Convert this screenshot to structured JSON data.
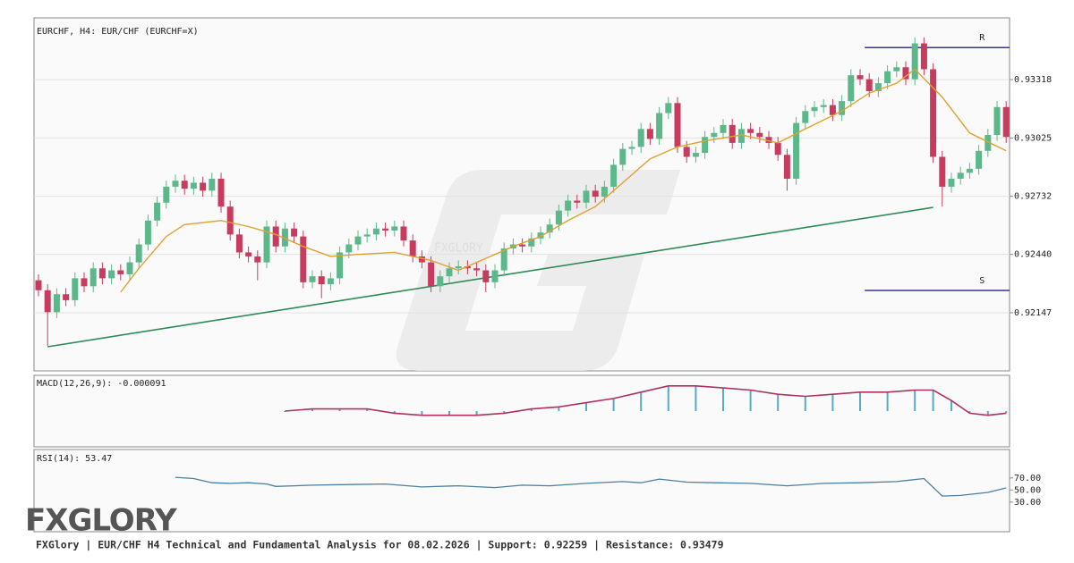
{
  "chart_data": {
    "type": "candlestick",
    "title": "EURCHF, H4: EUR/CHF (EURCHF=X)",
    "up_color": "#5cb88a",
    "down_color": "#c73b5f",
    "ylim": [
      0.91855,
      0.93628
    ],
    "yticks": [
      0.93318,
      0.93025,
      0.92732,
      {
        "value": 0.9244,
        "label": "0.92440"
      },
      0.92147
    ],
    "grid": true,
    "candles": [
      [
        0.9231,
        0.9234,
        0.9223,
        0.9226
      ],
      [
        0.9226,
        0.9229,
        0.9198,
        0.9215
      ],
      [
        0.9215,
        0.9227,
        0.9212,
        0.9224
      ],
      [
        0.9224,
        0.9227,
        0.9218,
        0.9221
      ],
      [
        0.9221,
        0.9235,
        0.9218,
        0.9232
      ],
      [
        0.9232,
        0.9235,
        0.9225,
        0.9228
      ],
      [
        0.9228,
        0.924,
        0.9225,
        0.9237
      ],
      [
        0.9237,
        0.924,
        0.9229,
        0.9232
      ],
      [
        0.9232,
        0.9239,
        0.9229,
        0.9236
      ],
      [
        0.9236,
        0.9239,
        0.9231,
        0.9234
      ],
      [
        0.9234,
        0.9243,
        0.9231,
        0.924
      ],
      [
        0.924,
        0.9252,
        0.9237,
        0.9249
      ],
      [
        0.9249,
        0.9264,
        0.9246,
        0.9261
      ],
      [
        0.9261,
        0.9273,
        0.9258,
        0.927
      ],
      [
        0.927,
        0.9281,
        0.9267,
        0.9278
      ],
      [
        0.9278,
        0.9284,
        0.9275,
        0.9281
      ],
      [
        0.9281,
        0.9284,
        0.9274,
        0.9277
      ],
      [
        0.9277,
        0.9283,
        0.9274,
        0.928
      ],
      [
        0.928,
        0.9283,
        0.9273,
        0.9276
      ],
      [
        0.9276,
        0.9285,
        0.9273,
        0.9282
      ],
      [
        0.9282,
        0.9285,
        0.9265,
        0.9268
      ],
      [
        0.9268,
        0.9271,
        0.9251,
        0.9254
      ],
      [
        0.9254,
        0.9257,
        0.9242,
        0.9245
      ],
      [
        0.9245,
        0.9248,
        0.924,
        0.9243
      ],
      [
        0.9243,
        0.9246,
        0.9231,
        0.924
      ],
      [
        0.924,
        0.9261,
        0.9237,
        0.9258
      ],
      [
        0.9258,
        0.9261,
        0.9245,
        0.9248
      ],
      [
        0.9248,
        0.926,
        0.9245,
        0.9257
      ],
      [
        0.9257,
        0.926,
        0.925,
        0.9253
      ],
      [
        0.9253,
        0.9256,
        0.9227,
        0.923
      ],
      [
        0.923,
        0.9236,
        0.9227,
        0.9233
      ],
      [
        0.9233,
        0.9236,
        0.9222,
        0.9229
      ],
      [
        0.9229,
        0.9235,
        0.9226,
        0.9232
      ],
      [
        0.9232,
        0.9248,
        0.9229,
        0.9245
      ],
      [
        0.9245,
        0.9252,
        0.9242,
        0.9249
      ],
      [
        0.9249,
        0.9256,
        0.9246,
        0.9253
      ],
      [
        0.9253,
        0.9257,
        0.925,
        0.9254
      ],
      [
        0.9254,
        0.926,
        0.9251,
        0.9257
      ],
      [
        0.9257,
        0.926,
        0.9253,
        0.9256
      ],
      [
        0.9256,
        0.9261,
        0.9253,
        0.9258
      ],
      [
        0.9258,
        0.9261,
        0.9248,
        0.9251
      ],
      [
        0.9251,
        0.9254,
        0.924,
        0.9243
      ],
      [
        0.9243,
        0.9246,
        0.9237,
        0.924
      ],
      [
        0.924,
        0.9243,
        0.9225,
        0.9228
      ],
      [
        0.9228,
        0.9236,
        0.9225,
        0.9233
      ],
      [
        0.9233,
        0.924,
        0.923,
        0.9237
      ],
      [
        0.9237,
        0.9241,
        0.9234,
        0.9238
      ],
      [
        0.9238,
        0.9241,
        0.9234,
        0.9237
      ],
      [
        0.9237,
        0.924,
        0.9233,
        0.9236
      ],
      [
        0.9236,
        0.9239,
        0.9225,
        0.923
      ],
      [
        0.923,
        0.9239,
        0.9227,
        0.9236
      ],
      [
        0.9236,
        0.925,
        0.9233,
        0.9247
      ],
      [
        0.9247,
        0.9252,
        0.9244,
        0.9249
      ],
      [
        0.9249,
        0.9252,
        0.9245,
        0.9248
      ],
      [
        0.9248,
        0.9255,
        0.9245,
        0.9252
      ],
      [
        0.9252,
        0.9258,
        0.9249,
        0.9255
      ],
      [
        0.9255,
        0.9262,
        0.9252,
        0.9259
      ],
      [
        0.9259,
        0.9269,
        0.9256,
        0.9266
      ],
      [
        0.9266,
        0.9274,
        0.9263,
        0.9271
      ],
      [
        0.9271,
        0.9274,
        0.9267,
        0.927
      ],
      [
        0.927,
        0.9279,
        0.9267,
        0.9276
      ],
      [
        0.9276,
        0.9279,
        0.927,
        0.9273
      ],
      [
        0.9273,
        0.9281,
        0.927,
        0.9278
      ],
      [
        0.9278,
        0.9292,
        0.9275,
        0.9289
      ],
      [
        0.9289,
        0.93,
        0.9286,
        0.9297
      ],
      [
        0.9297,
        0.9301,
        0.9294,
        0.9298
      ],
      [
        0.9298,
        0.931,
        0.9295,
        0.9307
      ],
      [
        0.9307,
        0.931,
        0.9299,
        0.9302
      ],
      [
        0.9302,
        0.9318,
        0.9299,
        0.9315
      ],
      [
        0.9315,
        0.9323,
        0.9312,
        0.932
      ],
      [
        0.932,
        0.9323,
        0.9295,
        0.9298
      ],
      [
        0.9298,
        0.9301,
        0.929,
        0.9293
      ],
      [
        0.9293,
        0.9298,
        0.929,
        0.9295
      ],
      [
        0.9295,
        0.9306,
        0.9292,
        0.9303
      ],
      [
        0.9303,
        0.9308,
        0.93,
        0.9305
      ],
      [
        0.9305,
        0.9312,
        0.9302,
        0.9309
      ],
      [
        0.9309,
        0.9312,
        0.9297,
        0.93
      ],
      [
        0.93,
        0.931,
        0.9297,
        0.9307
      ],
      [
        0.9307,
        0.931,
        0.9302,
        0.9305
      ],
      [
        0.9305,
        0.9308,
        0.93,
        0.9303
      ],
      [
        0.9303,
        0.9306,
        0.9297,
        0.93
      ],
      [
        0.93,
        0.9303,
        0.9291,
        0.9294
      ],
      [
        0.9294,
        0.9297,
        0.9276,
        0.9282
      ],
      [
        0.9282,
        0.9313,
        0.9279,
        0.931
      ],
      [
        0.931,
        0.9319,
        0.9307,
        0.9316
      ],
      [
        0.9316,
        0.9321,
        0.9313,
        0.9318
      ],
      [
        0.9318,
        0.9322,
        0.9315,
        0.9319
      ],
      [
        0.9319,
        0.9322,
        0.9311,
        0.9314
      ],
      [
        0.9314,
        0.9324,
        0.9311,
        0.9321
      ],
      [
        0.9321,
        0.9337,
        0.9318,
        0.9334
      ],
      [
        0.9334,
        0.9337,
        0.9329,
        0.9332
      ],
      [
        0.9332,
        0.9335,
        0.9323,
        0.9326
      ],
      [
        0.9326,
        0.9333,
        0.9323,
        0.933
      ],
      [
        0.933,
        0.9339,
        0.9327,
        0.9336
      ],
      [
        0.9336,
        0.9341,
        0.9333,
        0.9338
      ],
      [
        0.9338,
        0.9341,
        0.9329,
        0.9332
      ],
      [
        0.9332,
        0.9353,
        0.9329,
        0.935
      ],
      [
        0.935,
        0.9353,
        0.9334,
        0.9337
      ],
      [
        0.9337,
        0.934,
        0.929,
        0.9293
      ],
      [
        0.9293,
        0.9296,
        0.9268,
        0.9278
      ],
      [
        0.9278,
        0.9285,
        0.9275,
        0.9282
      ],
      [
        0.9282,
        0.9288,
        0.9279,
        0.9285
      ],
      [
        0.9285,
        0.929,
        0.9282,
        0.9287
      ],
      [
        0.9287,
        0.9299,
        0.9284,
        0.9296
      ],
      [
        0.9296,
        0.9307,
        0.9293,
        0.9304
      ],
      [
        0.9304,
        0.9321,
        0.9301,
        0.9318
      ],
      [
        0.9318,
        0.9321,
        0.93,
        0.9303
      ]
    ],
    "ma": {
      "color": "#e0a030",
      "x": [
        9,
        11,
        14,
        16,
        20,
        23,
        26,
        29,
        32,
        35,
        39,
        43,
        46,
        49,
        52,
        55,
        58,
        61,
        64,
        67,
        70,
        73,
        77,
        81,
        84,
        88,
        91,
        94,
        96,
        99,
        102,
        106
      ],
      "values": [
        0.9225,
        0.9237,
        0.9253,
        0.9259,
        0.9261,
        0.9258,
        0.9254,
        0.9248,
        0.9243,
        0.9244,
        0.9245,
        0.9241,
        0.9236,
        0.9242,
        0.9248,
        0.9253,
        0.9261,
        0.9268,
        0.928,
        0.9292,
        0.9298,
        0.9301,
        0.9304,
        0.93,
        0.9307,
        0.9316,
        0.9325,
        0.933,
        0.9337,
        0.9323,
        0.9305,
        0.9296
      ]
    },
    "trendline": {
      "color": "#2e8b57",
      "x": [
        1,
        98
      ],
      "values": [
        0.91976,
        0.92676
      ]
    },
    "levels": [
      {
        "name": "R",
        "value": 0.93479,
        "x": [
          91,
          106
        ]
      },
      {
        "name": "S",
        "value": 0.92259,
        "x": [
          91,
          106
        ]
      }
    ],
    "level_color": "#333399",
    "macd": {
      "label": "MACD(12,26,9): -0.000091",
      "ylim": [
        -0.0017,
        0.0017
      ],
      "hist_color": "#5aa8c8",
      "signal_color": "#b03060",
      "x": [
        27,
        30,
        33,
        36,
        39,
        42,
        45,
        48,
        51,
        54,
        57,
        60,
        63,
        66,
        69,
        72,
        75,
        78,
        81,
        84,
        87,
        90,
        93,
        96,
        98,
        100,
        102,
        104,
        106
      ],
      "hist": [
        0,
        0.0001,
        0.0001,
        0.0001,
        -0.0001,
        -0.0002,
        -0.0002,
        -0.0002,
        -0.0001,
        0.0001,
        0.0002,
        0.0004,
        0.0006,
        0.0009,
        0.0012,
        0.0012,
        0.0011,
        0.001,
        0.0008,
        0.0007,
        0.0008,
        0.0009,
        0.0009,
        0.001,
        0.001,
        0.0005,
        -0.0001,
        -0.0002,
        -0.0001
      ],
      "signal": [
        0,
        0.0001,
        0.0001,
        0.0001,
        -0.0001,
        -0.0002,
        -0.0002,
        -0.0002,
        -0.0001,
        0.0001,
        0.0002,
        0.0004,
        0.0006,
        0.0009,
        0.0012,
        0.0012,
        0.0011,
        0.001,
        0.0008,
        0.0007,
        0.0008,
        0.0009,
        0.0009,
        0.001,
        0.001,
        0.0005,
        -0.0001,
        -0.0002,
        -0.0001
      ]
    },
    "rsi": {
      "label": "RSI(14): 53.47",
      "color": "#4a7fa0",
      "ylim": [
        -19,
        117
      ],
      "yticks": [
        {
          "value": 70,
          "label": "70.00"
        },
        {
          "value": 50,
          "label": "50.00"
        },
        {
          "value": 30,
          "label": "30.00"
        }
      ],
      "x": [
        15,
        17,
        19,
        21,
        23,
        25,
        26,
        28,
        30,
        34,
        38,
        42,
        46,
        50,
        53,
        56,
        60,
        64,
        66,
        68,
        71,
        74,
        78,
        82,
        86,
        90,
        94,
        97,
        99,
        101,
        104,
        106
      ],
      "values": [
        71,
        69,
        62,
        61,
        62,
        60,
        56,
        57,
        58,
        59,
        60,
        55,
        57,
        54,
        58,
        57,
        61,
        64,
        62,
        68,
        63,
        62,
        61,
        57,
        61,
        62,
        64,
        69,
        40,
        41,
        46,
        53.47
      ]
    }
  },
  "footer": "FXGlory | EUR/CHF H4 Technical and Fundamental Analysis for 08.02.2026 | Support: 0.92259 | Resistance: 0.93479",
  "logo": "FXGLORY"
}
